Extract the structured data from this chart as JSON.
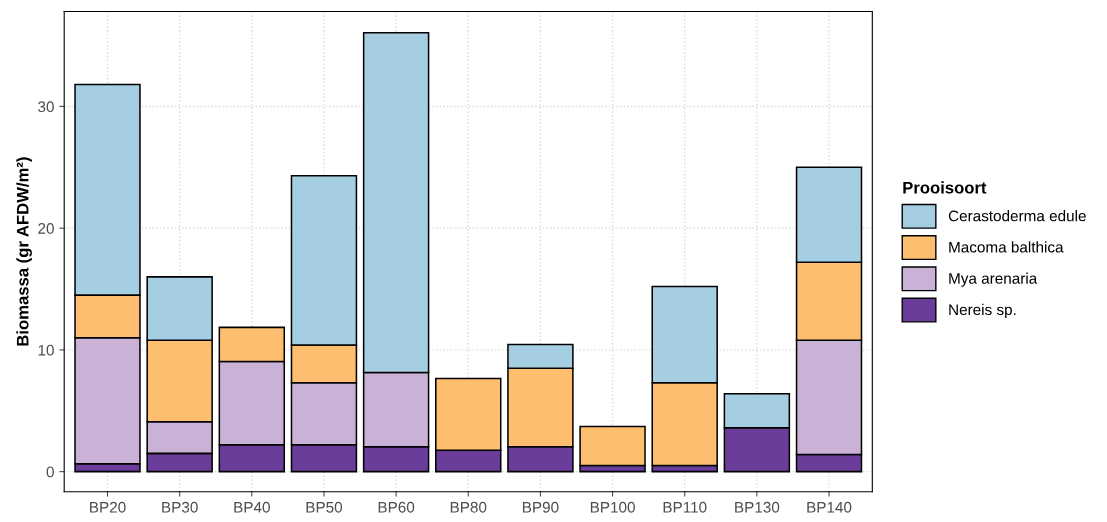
{
  "chart_data": {
    "type": "bar",
    "stacked": true,
    "ylabel": "Biomassa (gr AFDW/m²)",
    "legend_title": "Prooisoort",
    "categories": [
      "BP20",
      "BP30",
      "BP40",
      "BP50",
      "BP60",
      "BP80",
      "BP90",
      "BP100",
      "BP110",
      "BP130",
      "BP140"
    ],
    "series": [
      {
        "name": "Nereis sp.",
        "color": "#6a3d9a",
        "values": [
          0.65,
          1.5,
          2.2,
          2.2,
          2.05,
          1.75,
          2.05,
          0.5,
          0.5,
          3.6,
          1.4
        ]
      },
      {
        "name": "Mya arenaria",
        "color": "#cab2d6",
        "values": [
          10.35,
          2.6,
          6.85,
          5.1,
          6.1,
          null,
          null,
          null,
          null,
          null,
          9.4
        ]
      },
      {
        "name": "Macoma balthica",
        "color": "#fdbf6f",
        "values": [
          3.5,
          6.7,
          2.8,
          3.1,
          null,
          5.9,
          6.45,
          3.2,
          6.8,
          null,
          6.4
        ]
      },
      {
        "name": "Cerastoderma edule",
        "color": "#a6cee3",
        "values": [
          17.3,
          5.2,
          null,
          13.9,
          27.9,
          null,
          1.95,
          null,
          7.9,
          2.8,
          7.8
        ]
      }
    ],
    "ylim": [
      -1.65,
      37.8
    ],
    "yticks": [
      0,
      10,
      20,
      30
    ],
    "grid": true,
    "legend": "right"
  }
}
